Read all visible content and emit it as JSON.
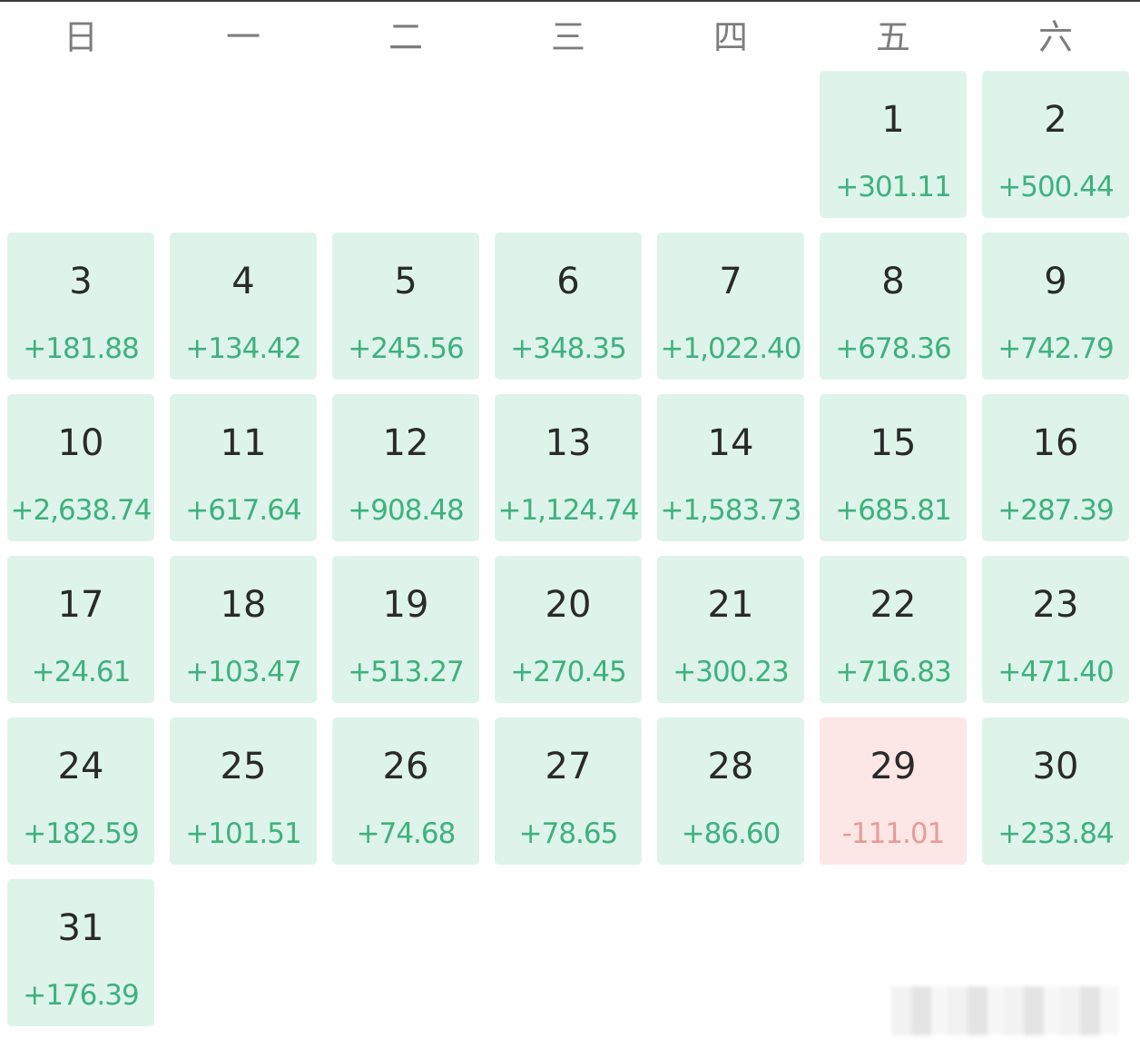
{
  "calendar": {
    "weekdays": [
      "日",
      "一",
      "二",
      "三",
      "四",
      "五",
      "六"
    ],
    "first_weekday_index": 5,
    "positive_color": "#3fb17e",
    "negative_color": "#e89b9b",
    "days": [
      {
        "day": "1",
        "amount": "+301.11"
      },
      {
        "day": "2",
        "amount": "+500.44"
      },
      {
        "day": "3",
        "amount": "+181.88"
      },
      {
        "day": "4",
        "amount": "+134.42"
      },
      {
        "day": "5",
        "amount": "+245.56"
      },
      {
        "day": "6",
        "amount": "+348.35"
      },
      {
        "day": "7",
        "amount": "+1,022.40"
      },
      {
        "day": "8",
        "amount": "+678.36"
      },
      {
        "day": "9",
        "amount": "+742.79"
      },
      {
        "day": "10",
        "amount": "+2,638.74"
      },
      {
        "day": "11",
        "amount": "+617.64"
      },
      {
        "day": "12",
        "amount": "+908.48"
      },
      {
        "day": "13",
        "amount": "+1,124.74"
      },
      {
        "day": "14",
        "amount": "+1,583.73"
      },
      {
        "day": "15",
        "amount": "+685.81"
      },
      {
        "day": "16",
        "amount": "+287.39"
      },
      {
        "day": "17",
        "amount": "+24.61"
      },
      {
        "day": "18",
        "amount": "+103.47"
      },
      {
        "day": "19",
        "amount": "+513.27"
      },
      {
        "day": "20",
        "amount": "+270.45"
      },
      {
        "day": "21",
        "amount": "+300.23"
      },
      {
        "day": "22",
        "amount": "+716.83"
      },
      {
        "day": "23",
        "amount": "+471.40"
      },
      {
        "day": "24",
        "amount": "+182.59"
      },
      {
        "day": "25",
        "amount": "+101.51"
      },
      {
        "day": "26",
        "amount": "+74.68"
      },
      {
        "day": "27",
        "amount": "+78.65"
      },
      {
        "day": "28",
        "amount": "+86.60"
      },
      {
        "day": "29",
        "amount": "-111.01",
        "negative": true
      },
      {
        "day": "30",
        "amount": "+233.84"
      },
      {
        "day": "31",
        "amount": "+176.39"
      }
    ]
  }
}
